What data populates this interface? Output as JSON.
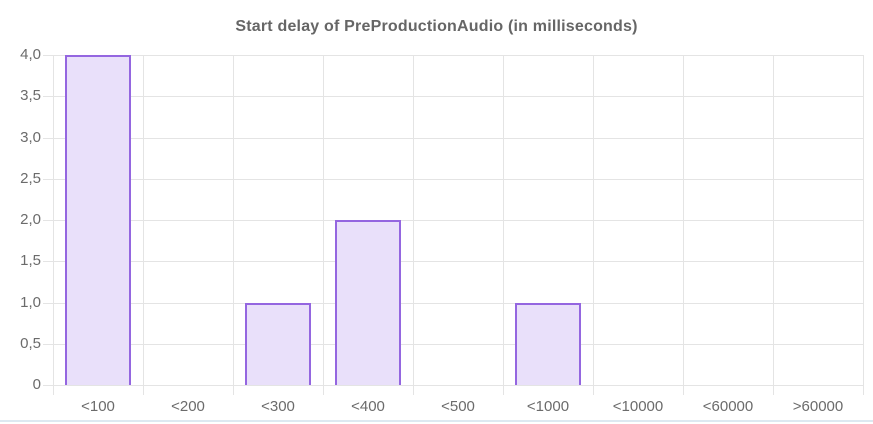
{
  "chart_data": {
    "type": "bar",
    "title": "Start delay of PreProductionAudio (in milliseconds)",
    "categories": [
      "<100",
      "<200",
      "<300",
      "<400",
      "<500",
      "<1000",
      "<10000",
      "<60000",
      ">60000"
    ],
    "values": [
      4,
      0,
      1,
      2,
      0,
      1,
      0,
      0,
      0
    ],
    "xlabel": "",
    "ylabel": "",
    "ylim": [
      0,
      4
    ],
    "ytick_step": 0.5,
    "ytick_labels_bottom_to_top": [
      "0",
      "0,5",
      "1,0",
      "1,5",
      "2,0",
      "2,5",
      "3,0",
      "3,5",
      "4,0"
    ],
    "grid": true,
    "legend": "none"
  },
  "colors": {
    "bar_fill": "#e9e0fa",
    "bar_border": "#9466e0",
    "gridline": "#e4e4e4",
    "tick_label": "#6b6b6b",
    "title": "#666666",
    "bottom_divider": "#dde8f1",
    "background": "#ffffff"
  }
}
